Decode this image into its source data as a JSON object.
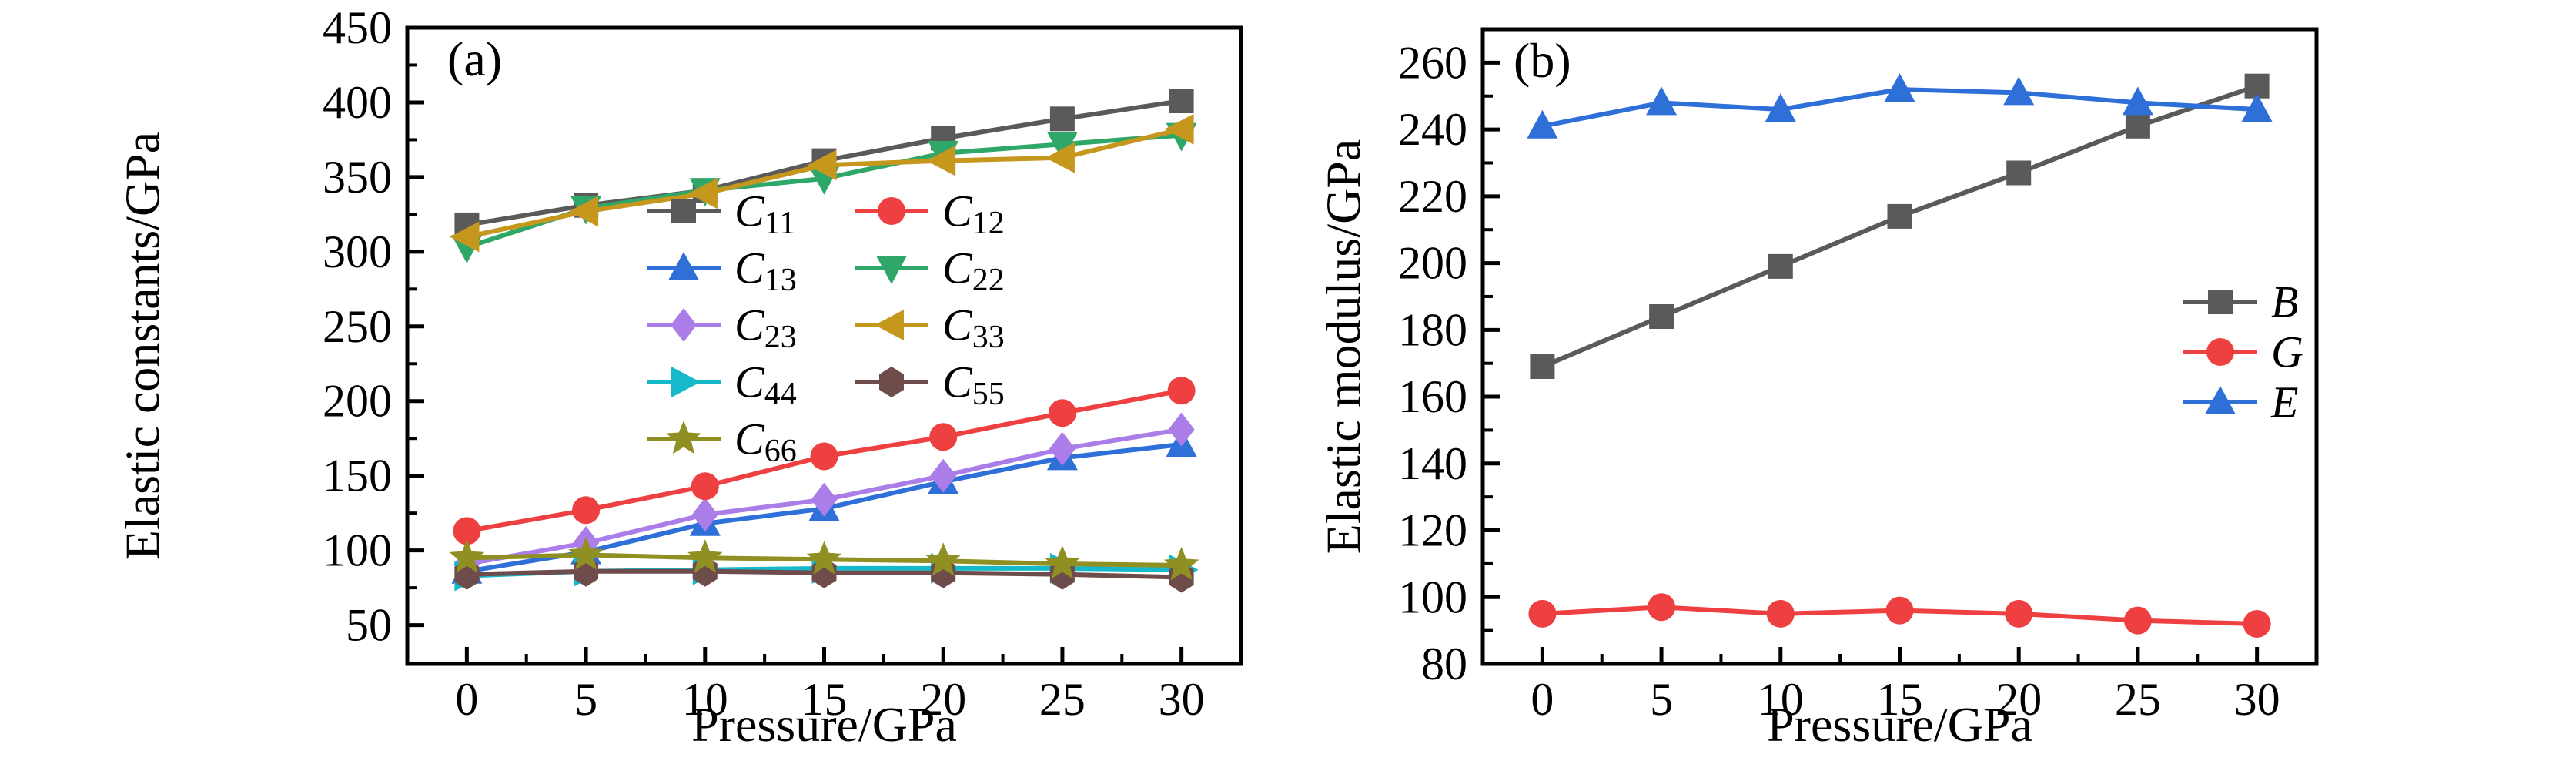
{
  "figure": {
    "background": "#ffffff",
    "description_visible_text_only": true
  },
  "chart_data": [
    {
      "id": "a",
      "type": "line",
      "panel_label": "(a)",
      "xlabel": "Pressure/GPa",
      "ylabel": "Elastic constants/GPa",
      "x": [
        0,
        5,
        10,
        15,
        20,
        25,
        30
      ],
      "xlim": [
        -2.5,
        32.5
      ],
      "ylim": [
        24,
        450
      ],
      "xticks": [
        0,
        5,
        10,
        15,
        20,
        25,
        30
      ],
      "yticks": [
        50,
        100,
        150,
        200,
        250,
        300,
        350,
        400,
        450
      ],
      "grid": false,
      "legend_position": "inside middle-left, two columns",
      "series": [
        {
          "name": "C11",
          "label": "C",
          "sub": "11",
          "marker": "square",
          "color": "#5a5a5a",
          "values": [
            318,
            331,
            341,
            361,
            376,
            389,
            401
          ]
        },
        {
          "name": "C12",
          "label": "C",
          "sub": "12",
          "marker": "circle",
          "color": "#ee3f41",
          "values": [
            113,
            127,
            143,
            163,
            176,
            192,
            207
          ]
        },
        {
          "name": "C13",
          "label": "C",
          "sub": "13",
          "marker": "triangle-up",
          "color": "#2f6fd8",
          "values": [
            86,
            99,
            118,
            128,
            146,
            162,
            171
          ]
        },
        {
          "name": "C22",
          "label": "C",
          "sub": "22",
          "marker": "triangle-down",
          "color": "#2ea768",
          "values": [
            303,
            329,
            341,
            349,
            366,
            372,
            378
          ]
        },
        {
          "name": "C23",
          "label": "C",
          "sub": "23",
          "marker": "diamond",
          "color": "#ab7de8",
          "values": [
            91,
            105,
            124,
            134,
            150,
            168,
            181
          ]
        },
        {
          "name": "C33",
          "label": "C",
          "sub": "33",
          "marker": "triangle-left",
          "color": "#c5971d",
          "values": [
            310,
            327,
            339,
            358,
            361,
            363,
            382
          ]
        },
        {
          "name": "C44",
          "label": "C",
          "sub": "44",
          "marker": "triangle-right",
          "color": "#16b9c9",
          "values": [
            83,
            86,
            87,
            88,
            88,
            88,
            87
          ]
        },
        {
          "name": "C55",
          "label": "C",
          "sub": "55",
          "marker": "hexagon",
          "color": "#6f4c4c",
          "values": [
            84,
            86,
            86,
            85,
            85,
            84,
            82
          ]
        },
        {
          "name": "C66",
          "label": "C",
          "sub": "66",
          "marker": "star",
          "color": "#8f8f22",
          "values": [
            95,
            97,
            95,
            94,
            93,
            91,
            90
          ]
        }
      ]
    },
    {
      "id": "b",
      "type": "line",
      "panel_label": "(b)",
      "xlabel": "Pressure/GPa",
      "ylabel": "Elastic modulus/GPa",
      "x": [
        0,
        5,
        10,
        15,
        20,
        25,
        30
      ],
      "xlim": [
        -2.5,
        32.5
      ],
      "ylim": [
        80,
        270
      ],
      "xticks": [
        0,
        5,
        10,
        15,
        20,
        25,
        30
      ],
      "yticks": [
        80,
        100,
        120,
        140,
        160,
        180,
        200,
        220,
        240,
        260
      ],
      "grid": false,
      "legend_position": "inside middle-right, single column",
      "series": [
        {
          "name": "B",
          "label": "B",
          "sub": "",
          "marker": "square",
          "color": "#5a5a5a",
          "values": [
            169,
            184,
            199,
            214,
            227,
            241,
            253
          ]
        },
        {
          "name": "G",
          "label": "G",
          "sub": "",
          "marker": "circle",
          "color": "#ee3f41",
          "values": [
            95,
            97,
            95,
            96,
            95,
            93,
            92
          ]
        },
        {
          "name": "E",
          "label": "E",
          "sub": "",
          "marker": "triangle-up",
          "color": "#2f6fd8",
          "values": [
            241,
            248,
            246,
            252,
            251,
            248,
            246
          ]
        }
      ]
    }
  ]
}
